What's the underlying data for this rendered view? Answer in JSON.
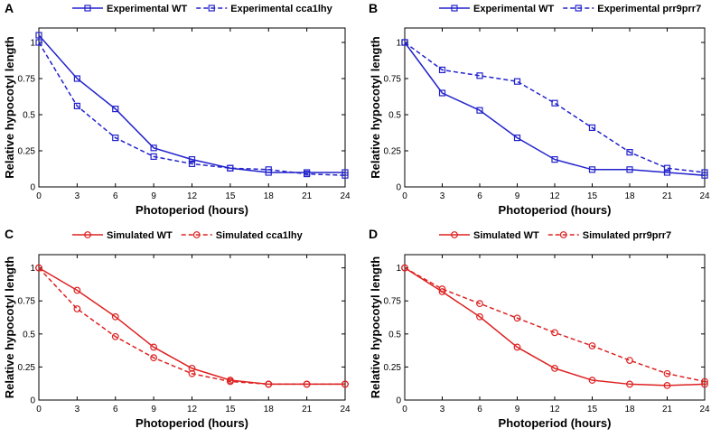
{
  "chart_data": [
    {
      "type": "line",
      "panel_label": "A",
      "xlabel": "Photoperiod (hours)",
      "ylabel": "Relative hypocotyl length",
      "xlim": [
        0,
        24
      ],
      "ylim": [
        0,
        1.1
      ],
      "xticks": [
        "0",
        "3",
        "6",
        "9",
        "12",
        "15",
        "18",
        "21",
        "24"
      ],
      "yticks": [
        "0",
        "0.25",
        "0.5",
        "0.75",
        "1"
      ],
      "marker": "square",
      "color": "#2222cc",
      "legend_position": "top",
      "x": [
        0,
        3,
        6,
        9,
        12,
        15,
        18,
        21,
        24
      ],
      "series": [
        {
          "name": "Experimental WT",
          "dash": false,
          "values": [
            1.05,
            0.75,
            0.54,
            0.27,
            0.19,
            0.13,
            0.1,
            0.1,
            0.1
          ]
        },
        {
          "name": "Experimental cca1lhy",
          "dash": true,
          "values": [
            1.0,
            0.56,
            0.34,
            0.21,
            0.16,
            0.13,
            0.12,
            0.09,
            0.08
          ]
        }
      ]
    },
    {
      "type": "line",
      "panel_label": "B",
      "xlabel": "Photoperiod (hours)",
      "ylabel": "Relative hypocotyl length",
      "xlim": [
        0,
        24
      ],
      "ylim": [
        0,
        1.1
      ],
      "xticks": [
        "0",
        "3",
        "6",
        "9",
        "12",
        "15",
        "18",
        "21",
        "24"
      ],
      "yticks": [
        "0",
        "0.25",
        "0.5",
        "0.75",
        "1"
      ],
      "marker": "square",
      "color": "#2222cc",
      "legend_position": "top",
      "x": [
        0,
        3,
        6,
        9,
        12,
        15,
        18,
        21,
        24
      ],
      "series": [
        {
          "name": "Experimental WT",
          "dash": false,
          "values": [
            1.0,
            0.65,
            0.53,
            0.34,
            0.19,
            0.12,
            0.12,
            0.1,
            0.08
          ]
        },
        {
          "name": "Experimental prr9prr7",
          "dash": true,
          "values": [
            1.0,
            0.81,
            0.77,
            0.73,
            0.58,
            0.41,
            0.24,
            0.13,
            0.1
          ]
        }
      ]
    },
    {
      "type": "line",
      "panel_label": "C",
      "xlabel": "Photoperiod (hours)",
      "ylabel": "Relative hypocotyl length",
      "xlim": [
        0,
        24
      ],
      "ylim": [
        0,
        1.1
      ],
      "xticks": [
        "0",
        "3",
        "6",
        "9",
        "12",
        "15",
        "18",
        "21",
        "24"
      ],
      "yticks": [
        "0",
        "0.25",
        "0.5",
        "0.75",
        "1"
      ],
      "marker": "circle",
      "color": "#dd2222",
      "legend_position": "top",
      "x": [
        0,
        3,
        6,
        9,
        12,
        15,
        18,
        21,
        24
      ],
      "series": [
        {
          "name": "Simulated WT",
          "dash": false,
          "values": [
            1.0,
            0.83,
            0.63,
            0.4,
            0.24,
            0.15,
            0.12,
            0.12,
            0.12
          ]
        },
        {
          "name": "Simulated cca1lhy",
          "dash": true,
          "values": [
            1.0,
            0.69,
            0.48,
            0.32,
            0.2,
            0.14,
            0.12,
            0.12,
            0.12
          ]
        }
      ]
    },
    {
      "type": "line",
      "panel_label": "D",
      "xlabel": "Photoperiod (hours)",
      "ylabel": "Relative hypocotyl length",
      "xlim": [
        0,
        24
      ],
      "ylim": [
        0,
        1.1
      ],
      "xticks": [
        "0",
        "3",
        "6",
        "9",
        "12",
        "15",
        "18",
        "21",
        "24"
      ],
      "yticks": [
        "0",
        "0.25",
        "0.5",
        "0.75",
        "1"
      ],
      "marker": "circle",
      "color": "#dd2222",
      "legend_position": "top",
      "x": [
        0,
        3,
        6,
        9,
        12,
        15,
        18,
        21,
        24
      ],
      "series": [
        {
          "name": "Simulated WT",
          "dash": false,
          "values": [
            1.0,
            0.82,
            0.63,
            0.4,
            0.24,
            0.15,
            0.12,
            0.11,
            0.12
          ]
        },
        {
          "name": "Simulated prr9prr7",
          "dash": true,
          "values": [
            1.0,
            0.84,
            0.73,
            0.62,
            0.51,
            0.41,
            0.3,
            0.2,
            0.14
          ]
        }
      ]
    }
  ]
}
